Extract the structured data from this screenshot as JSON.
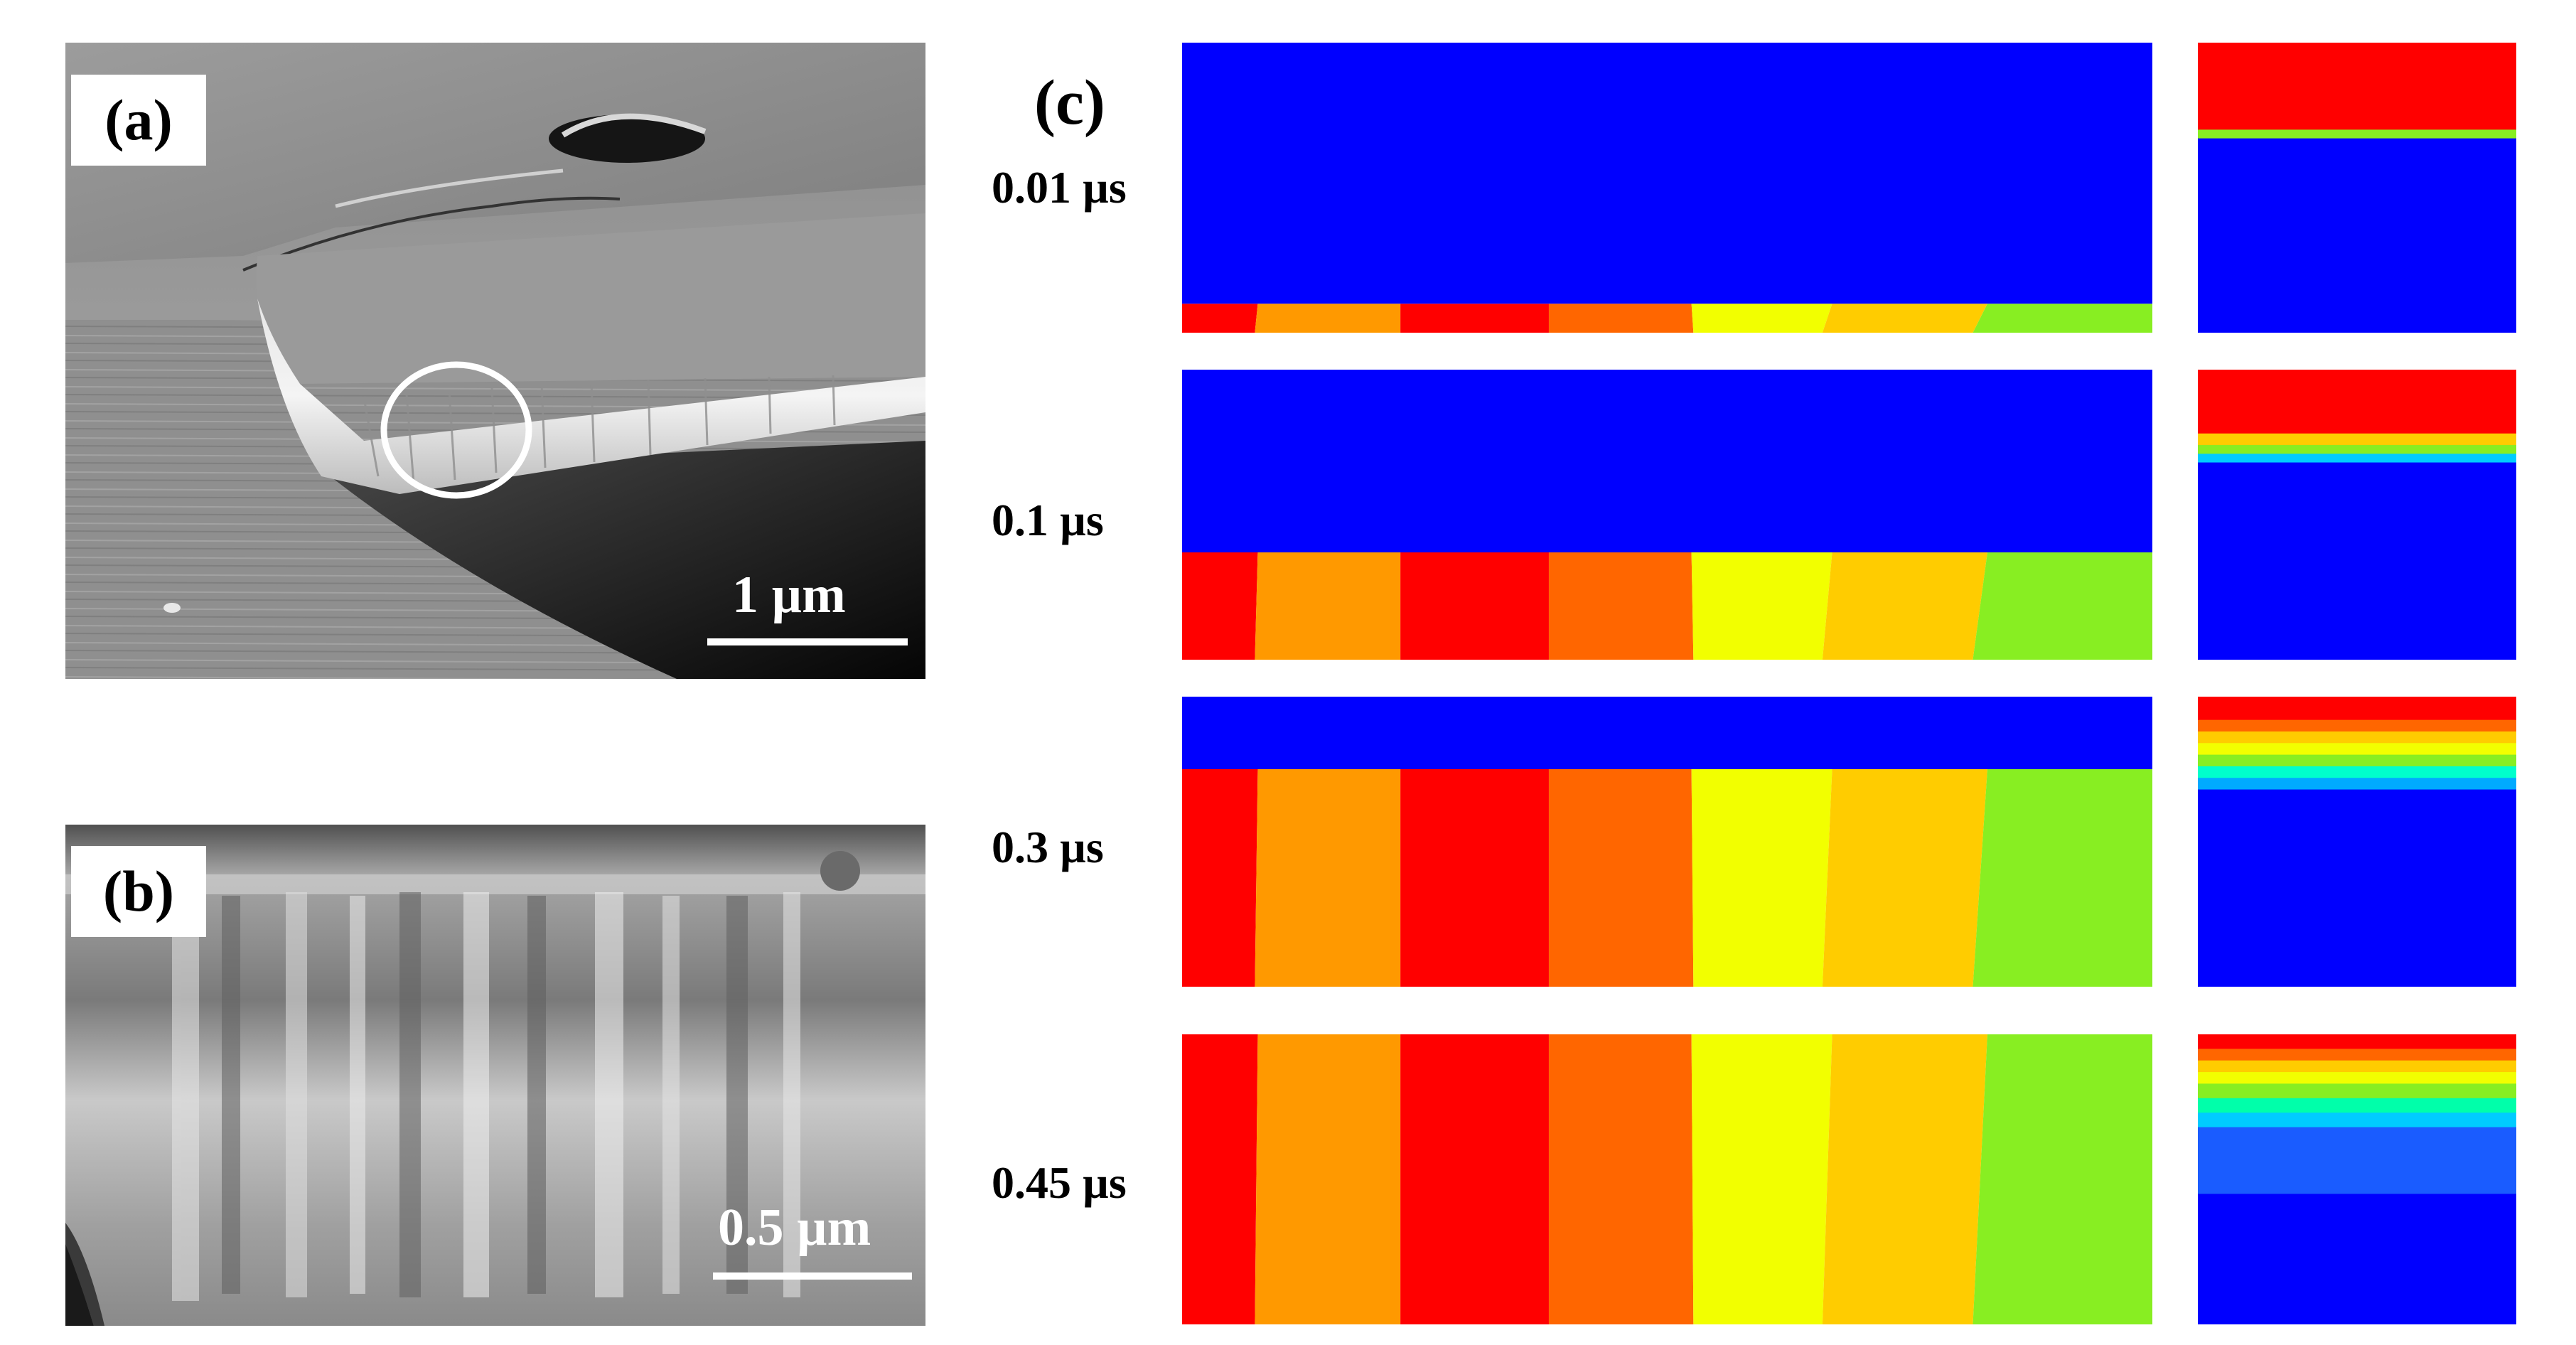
{
  "panels": {
    "a": {
      "tag": "(a)",
      "scale_label": "1 µm"
    },
    "b": {
      "tag": "(b)",
      "scale_label": "0.5 µm"
    },
    "c": {
      "tag": "(c)"
    }
  },
  "time_steps": [
    {
      "label": "0.01 µs",
      "interface_fraction": 0.9,
      "right_gradient": "thin"
    },
    {
      "label": "0.1 µs",
      "interface_fraction": 0.63,
      "right_gradient": "narrow"
    },
    {
      "label": "0.3 µs",
      "interface_fraction": 0.25,
      "right_gradient": "medium"
    },
    {
      "label": "0.45 µs",
      "interface_fraction": 0.0,
      "right_gradient": "wide"
    }
  ],
  "colors": {
    "blue": "#0000ff",
    "red": "#ff0000",
    "orange": "#ff9900",
    "dark_orange": "#ff6600",
    "yellow": "#f2ff00",
    "gold": "#ffcc00",
    "green": "#88ee22"
  }
}
